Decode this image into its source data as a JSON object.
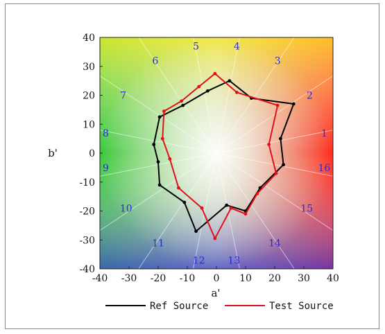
{
  "chart_data": {
    "type": "radar-scatter",
    "title": "",
    "xlabel": "a'",
    "ylabel": "b'",
    "xlim": [
      -40,
      40
    ],
    "ylim": [
      -40,
      40
    ],
    "xticks": [
      -40,
      -30,
      -20,
      -10,
      0,
      10,
      20,
      30,
      40
    ],
    "yticks": [
      40,
      30,
      20,
      10,
      0,
      -10,
      -20,
      -30,
      -40
    ],
    "grid": false,
    "spokes": 16,
    "legend": {
      "placement": "bottom",
      "entries": [
        {
          "name": "Ref Source",
          "color": "#000000"
        },
        {
          "name": "Test Source",
          "color": "#e0101a"
        }
      ]
    },
    "hue_bins": [
      {
        "label": "1",
        "x": 37,
        "y": 7
      },
      {
        "label": "2",
        "x": 32,
        "y": 20
      },
      {
        "label": "3",
        "x": 21,
        "y": 32
      },
      {
        "label": "4",
        "x": 7,
        "y": 37
      },
      {
        "label": "5",
        "x": -7,
        "y": 37
      },
      {
        "label": "6",
        "x": -21,
        "y": 32
      },
      {
        "label": "7",
        "x": -32,
        "y": 20
      },
      {
        "label": "8",
        "x": -38,
        "y": 7
      },
      {
        "label": "9",
        "x": -38,
        "y": -5
      },
      {
        "label": "10",
        "x": -31,
        "y": -19
      },
      {
        "label": "11",
        "x": -20,
        "y": -31
      },
      {
        "label": "12",
        "x": -6,
        "y": -37
      },
      {
        "label": "13",
        "x": 6,
        "y": -37
      },
      {
        "label": "14",
        "x": 20,
        "y": -31
      },
      {
        "label": "15",
        "x": 31,
        "y": -19
      },
      {
        "label": "16",
        "x": 37,
        "y": -5
      }
    ],
    "series": [
      {
        "name": "Ref Source",
        "color": "#000000",
        "points": [
          [
            22,
            5
          ],
          [
            26.5,
            17
          ],
          [
            12,
            19
          ],
          [
            4.5,
            25
          ],
          [
            -3,
            21.5
          ],
          [
            -11.5,
            16.5
          ],
          [
            -19.5,
            12.5
          ],
          [
            -21.5,
            3
          ],
          [
            -20,
            -3
          ],
          [
            -19.5,
            -11
          ],
          [
            -11,
            -17
          ],
          [
            -7,
            -27
          ],
          [
            3.5,
            -18
          ],
          [
            10,
            -20
          ],
          [
            15,
            -12
          ],
          [
            23,
            -4
          ]
        ]
      },
      {
        "name": "Test Source",
        "color": "#e0101a",
        "points": [
          [
            18,
            3
          ],
          [
            21,
            16.5
          ],
          [
            7,
            21
          ],
          [
            -0.5,
            27.5
          ],
          [
            -6,
            23
          ],
          [
            -12,
            18
          ],
          [
            -18,
            14.5
          ],
          [
            -18.5,
            5
          ],
          [
            -16,
            -2
          ],
          [
            -13,
            -12
          ],
          [
            -5,
            -19
          ],
          [
            -0.5,
            -29.5
          ],
          [
            5,
            -19
          ],
          [
            10,
            -21
          ],
          [
            14,
            -14
          ],
          [
            20.5,
            -7
          ]
        ]
      }
    ]
  }
}
